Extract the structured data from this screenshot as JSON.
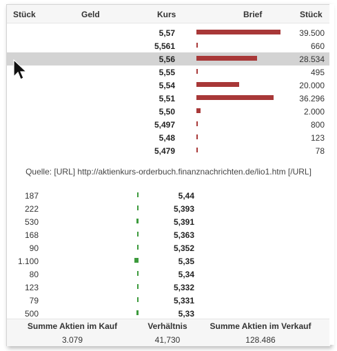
{
  "header": {
    "col_stueck_left": "Stück",
    "col_geld": "Geld",
    "col_kurs": "Kurs",
    "col_brief": "Brief",
    "col_stueck_right": "Stück"
  },
  "ask": [
    {
      "kurs": "5,57",
      "stueck": "39.500"
    },
    {
      "kurs": "5,561",
      "stueck": "660"
    },
    {
      "kurs": "5,56",
      "stueck": "28.534"
    },
    {
      "kurs": "5,55",
      "stueck": "495"
    },
    {
      "kurs": "5,54",
      "stueck": "20.000"
    },
    {
      "kurs": "5,51",
      "stueck": "36.296"
    },
    {
      "kurs": "5,50",
      "stueck": "2.000"
    },
    {
      "kurs": "5,497",
      "stueck": "800"
    },
    {
      "kurs": "5,48",
      "stueck": "123"
    },
    {
      "kurs": "5,479",
      "stueck": "78"
    }
  ],
  "source": "Quelle: [URL] http://aktienkurs-orderbuch.finanznachrichten.de/lio1.htm [/URL]",
  "bid": [
    {
      "stueck": "187",
      "kurs": "5,44"
    },
    {
      "stueck": "222",
      "kurs": "5,393"
    },
    {
      "stueck": "530",
      "kurs": "5,391"
    },
    {
      "stueck": "168",
      "kurs": "5,363"
    },
    {
      "stueck": "90",
      "kurs": "5,352"
    },
    {
      "stueck": "1.100",
      "kurs": "5,35"
    },
    {
      "stueck": "80",
      "kurs": "5,34"
    },
    {
      "stueck": "123",
      "kurs": "5,332"
    },
    {
      "stueck": "79",
      "kurs": "5,331"
    },
    {
      "stueck": "500",
      "kurs": "5,33"
    }
  ],
  "footer": {
    "kauf_label": "Summe Aktien im Kauf",
    "kauf_value": "3.079",
    "ratio_label": "Verhältnis",
    "ratio_value": "41,730",
    "verkauf_label": "Summe Aktien im Verkauf",
    "verkauf_value": "128.486"
  },
  "colors": {
    "ask_bar": "#a83838",
    "bid_bar": "#3c9a3c",
    "highlight_row": "#d3d3d3"
  },
  "highlighted_ask_row": 2
}
